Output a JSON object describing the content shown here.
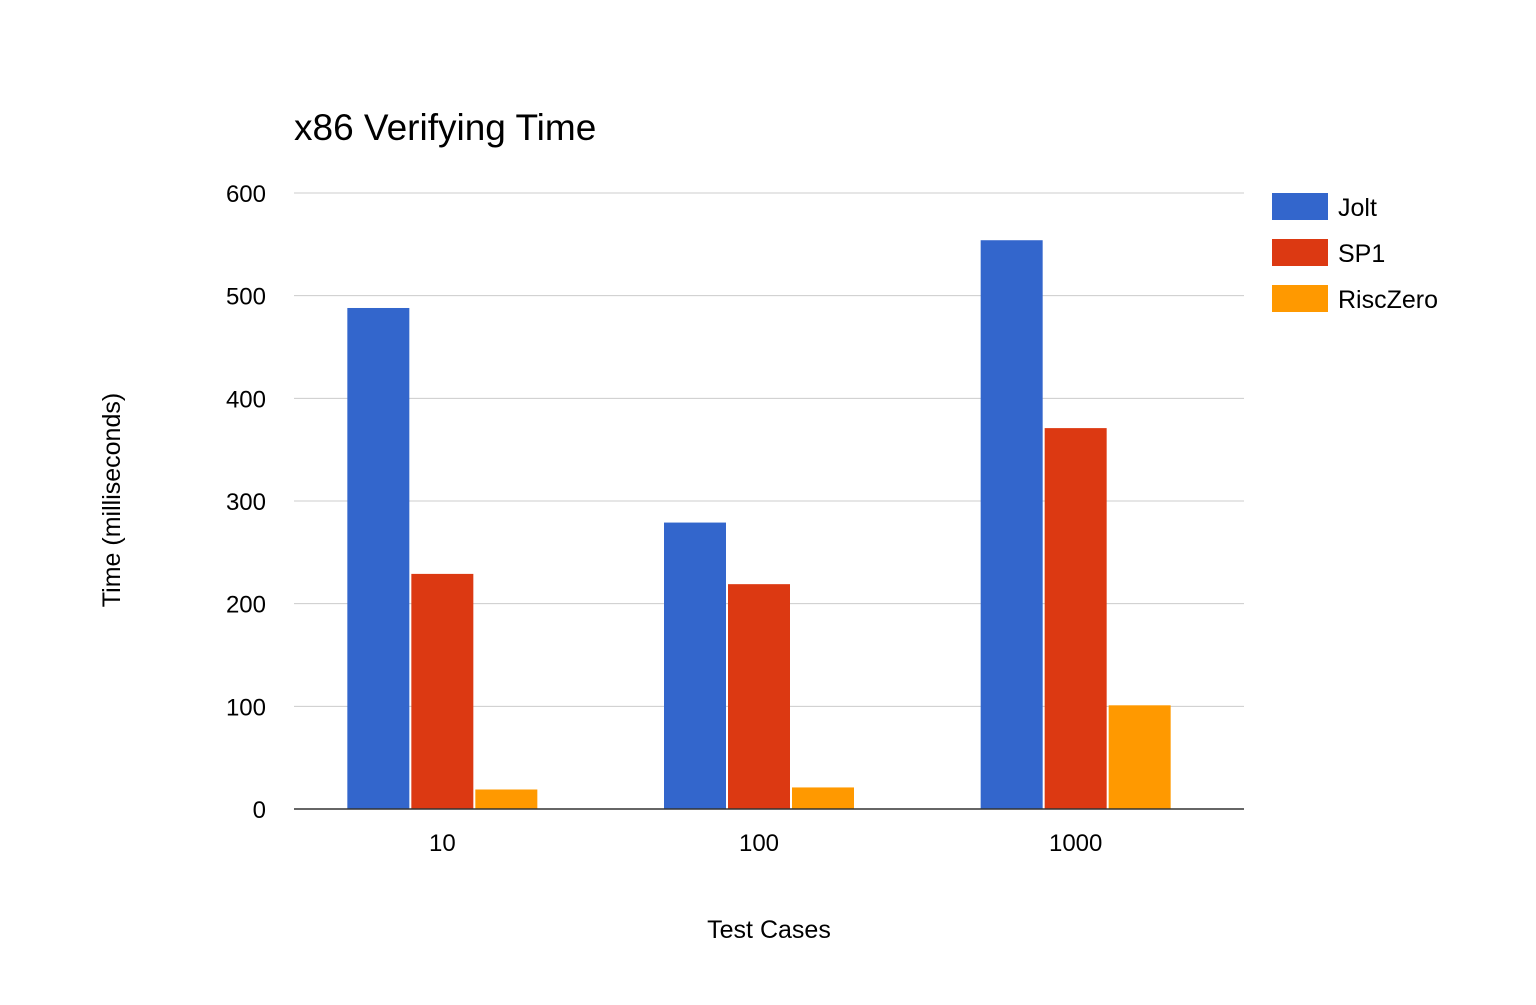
{
  "chart_data": {
    "type": "bar",
    "title": "x86 Verifying Time",
    "xlabel": "Test Cases",
    "ylabel": "Time (milliseconds)",
    "categories": [
      "10",
      "100",
      "1000"
    ],
    "series": [
      {
        "name": "Jolt",
        "color": "#3366cc",
        "values": [
          488,
          279,
          554
        ]
      },
      {
        "name": "SP1",
        "color": "#dc3912",
        "values": [
          229,
          219,
          371
        ]
      },
      {
        "name": "RiscZero",
        "color": "#ff9900",
        "values": [
          19,
          21,
          101
        ]
      }
    ],
    "ylim": [
      0,
      600
    ],
    "yticks": [
      0,
      100,
      200,
      300,
      400,
      500,
      600
    ],
    "grid": true,
    "legend_position": "right"
  }
}
